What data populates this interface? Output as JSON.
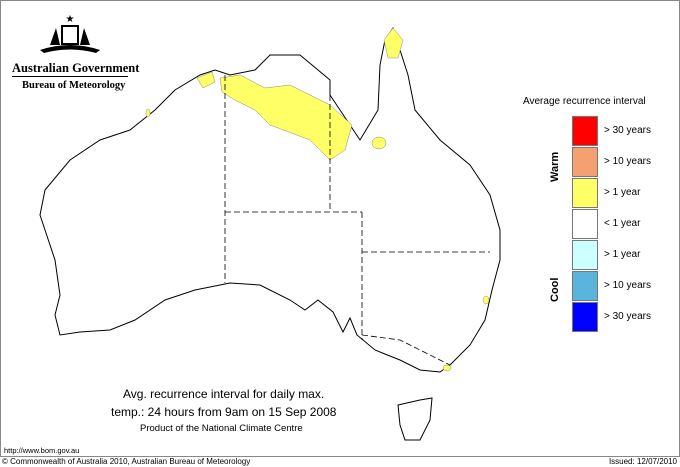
{
  "header": {
    "government": "Australian Government",
    "bureau": "Bureau of Meteorology"
  },
  "legend": {
    "title": "Average recurrence interval",
    "warm_label": "Warm",
    "cool_label": "Cool",
    "items": [
      {
        "label": "> 30 years",
        "color": "#ff0000"
      },
      {
        "label": "> 10 years",
        "color": "#f5a070"
      },
      {
        "label": "> 1 year",
        "color": "#ffff66"
      },
      {
        "label": "< 1 year",
        "color": "#ffffff"
      },
      {
        "label": "> 1 year",
        "color": "#ccffff"
      },
      {
        "label": "> 10 years",
        "color": "#5ab4dc"
      },
      {
        "label": "> 30 years",
        "color": "#0000ff"
      }
    ]
  },
  "map": {
    "anomaly_color": "#ffff66"
  },
  "caption": {
    "line1": "Avg. recurrence interval for daily max.",
    "line2": "temp.: 24 hours from 9am on 15 Sep 2008",
    "line3": "Product of the National Climate Centre"
  },
  "footer": {
    "url": "http://www.bom.gov.au",
    "copyright": "© Commonwealth of Australia 2010, Australian Bureau of Meteorology",
    "issued": "Issued: 12/07/2010"
  }
}
